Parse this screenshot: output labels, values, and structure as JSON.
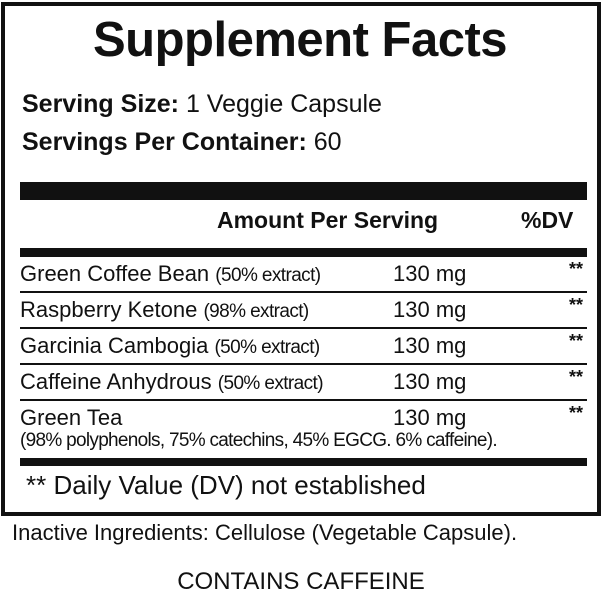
{
  "title": "Supplement Facts",
  "serving_size": {
    "label": "Serving Size:",
    "value": "1 Veggie Capsule"
  },
  "servings_per_container": {
    "label": "Servings Per Container:",
    "value": "60"
  },
  "columns": {
    "amount": "Amount Per Serving",
    "dv": "%DV"
  },
  "rows": [
    {
      "name": "Green Coffee Bean",
      "extract": "(50% extract)",
      "amount": "130 mg",
      "dv": "**"
    },
    {
      "name": "Raspberry Ketone",
      "extract": "(98% extract)",
      "amount": "130 mg",
      "dv": "**"
    },
    {
      "name": "Garcinia Cambogia",
      "extract": "(50% extract)",
      "amount": "130 mg",
      "dv": "**"
    },
    {
      "name": "Caffeine Anhydrous",
      "extract": "(50% extract)",
      "amount": "130 mg",
      "dv": "**"
    },
    {
      "name": "Green Tea",
      "extract": "",
      "amount": "130 mg",
      "dv": "**"
    }
  ],
  "green_tea_note": "(98% polyphenols, 75% catechins, 45% EGCG. 6% caffeine).",
  "footnote": "** Daily Value (DV) not established",
  "inactive": "Inactive Ingredients: Cellulose (Vegetable Capsule).",
  "warning": "CONTAINS CAFFEINE"
}
